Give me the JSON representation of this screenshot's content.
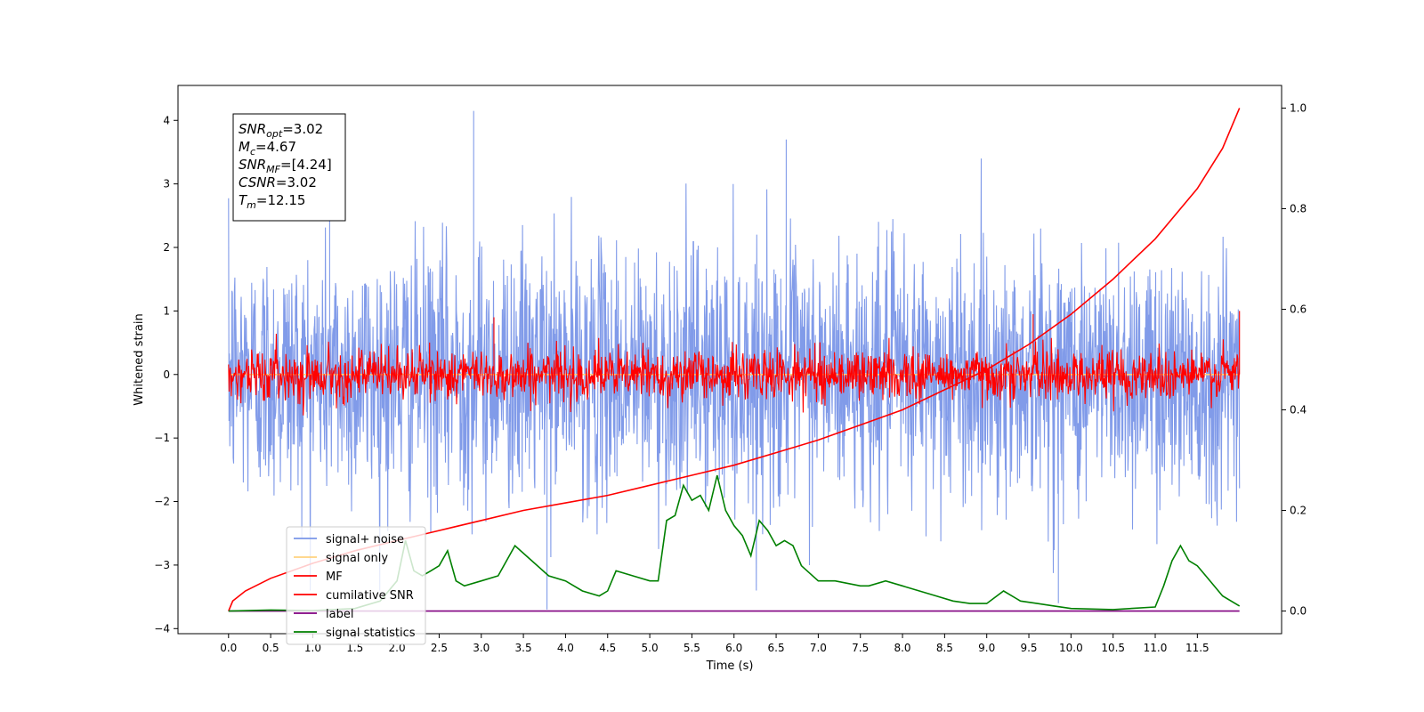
{
  "chart_data": {
    "type": "line",
    "xlabel": "Time (s)",
    "ylabel": "Whitened strain",
    "xlim": [
      -0.6,
      12.5
    ],
    "ylim": [
      -4.08,
      4.55
    ],
    "y2lim": [
      -0.045,
      1.045
    ],
    "x_ticks": [
      "0.0",
      "0.5",
      "1.0",
      "1.5",
      "2.0",
      "2.5",
      "3.0",
      "3.5",
      "4.0",
      "4.5",
      "5.0",
      "5.5",
      "6.0",
      "6.5",
      "7.0",
      "7.5",
      "8.0",
      "8.5",
      "9.0",
      "9.5",
      "10.0",
      "10.5",
      "11.0",
      "11.5"
    ],
    "y_ticks": [
      "4",
      "3",
      "2",
      "1",
      "0",
      "−1",
      "−2",
      "−3",
      "−4"
    ],
    "y2_ticks": [
      "1.0",
      "0.8",
      "0.6",
      "0.4",
      "0.2",
      "0.0"
    ],
    "grid": false,
    "legend_position": "lower-left",
    "annotation": {
      "lines": [
        {
          "sym": "SNR",
          "sub": "opt",
          "value": "=3.02"
        },
        {
          "sym": "M",
          "sub": "c",
          "value": "=4.67"
        },
        {
          "sym": "SNR",
          "sub": "MF",
          "value": "=[4.24]"
        },
        {
          "sym": "CSNR",
          "sub": "",
          "value": "=3.02"
        },
        {
          "sym": "T",
          "sub": "m",
          "value": "=12.15"
        }
      ]
    },
    "series": [
      {
        "name": "signal+ noise",
        "color": "#7a96e8",
        "axis": "left",
        "kind": "noise",
        "amplitude_std": 1.0,
        "peaks": [
          [
            2.91,
            4.15
          ],
          [
            3.78,
            -3.7
          ],
          [
            9.85,
            -3.6
          ],
          [
            1.2,
            3.9
          ],
          [
            6.62,
            3.7
          ]
        ]
      },
      {
        "name": "signal only",
        "color": "#ffd27f",
        "axis": "left",
        "kind": "flat",
        "value": 0.0
      },
      {
        "name": "MF",
        "color": "#ff0000",
        "axis": "left",
        "kind": "noise",
        "amplitude_std": 0.2,
        "peaks": [
          [
            3.15,
            0.9
          ],
          [
            9.55,
            0.95
          ],
          [
            12.0,
            1.0
          ]
        ]
      },
      {
        "name": "cumilative SNR",
        "color": "#ff0000",
        "axis": "right",
        "x": [
          0.0,
          0.05,
          0.2,
          0.5,
          1.0,
          1.5,
          2.0,
          2.5,
          3.0,
          3.5,
          4.0,
          4.5,
          5.0,
          5.5,
          6.0,
          6.5,
          7.0,
          7.5,
          8.0,
          8.5,
          9.0,
          9.5,
          10.0,
          10.5,
          11.0,
          11.5,
          11.8,
          12.0
        ],
        "values": [
          0.0,
          0.02,
          0.04,
          0.065,
          0.095,
          0.12,
          0.14,
          0.16,
          0.18,
          0.2,
          0.215,
          0.23,
          0.25,
          0.27,
          0.29,
          0.315,
          0.34,
          0.37,
          0.4,
          0.44,
          0.48,
          0.53,
          0.59,
          0.66,
          0.74,
          0.84,
          0.92,
          1.0
        ]
      },
      {
        "name": "label",
        "color": "#800080",
        "axis": "right",
        "kind": "flat",
        "value": 0.0
      },
      {
        "name": "signal statistics",
        "color": "#008000",
        "axis": "right",
        "x": [
          0.0,
          0.5,
          1.0,
          1.5,
          1.8,
          2.0,
          2.1,
          2.2,
          2.3,
          2.4,
          2.5,
          2.6,
          2.7,
          2.8,
          3.0,
          3.2,
          3.4,
          3.6,
          3.8,
          4.0,
          4.2,
          4.4,
          4.5,
          4.6,
          4.8,
          5.0,
          5.1,
          5.2,
          5.3,
          5.4,
          5.5,
          5.6,
          5.7,
          5.8,
          5.9,
          6.0,
          6.1,
          6.2,
          6.3,
          6.4,
          6.5,
          6.6,
          6.7,
          6.8,
          7.0,
          7.2,
          7.5,
          7.6,
          7.8,
          8.0,
          8.2,
          8.4,
          8.6,
          8.8,
          9.0,
          9.2,
          9.4,
          9.6,
          9.8,
          10.0,
          10.5,
          11.0,
          11.1,
          11.2,
          11.3,
          11.4,
          11.5,
          11.6,
          11.8,
          12.0
        ],
        "values": [
          0.0,
          0.002,
          0.001,
          0.005,
          0.02,
          0.06,
          0.14,
          0.08,
          0.07,
          0.08,
          0.09,
          0.12,
          0.06,
          0.05,
          0.06,
          0.07,
          0.13,
          0.1,
          0.07,
          0.06,
          0.04,
          0.03,
          0.04,
          0.08,
          0.07,
          0.06,
          0.06,
          0.18,
          0.19,
          0.25,
          0.22,
          0.23,
          0.2,
          0.27,
          0.2,
          0.17,
          0.15,
          0.11,
          0.18,
          0.16,
          0.13,
          0.14,
          0.13,
          0.09,
          0.06,
          0.06,
          0.05,
          0.05,
          0.06,
          0.05,
          0.04,
          0.03,
          0.02,
          0.015,
          0.015,
          0.04,
          0.02,
          0.015,
          0.01,
          0.005,
          0.003,
          0.008,
          0.05,
          0.1,
          0.13,
          0.1,
          0.09,
          0.07,
          0.03,
          0.01
        ]
      }
    ]
  }
}
